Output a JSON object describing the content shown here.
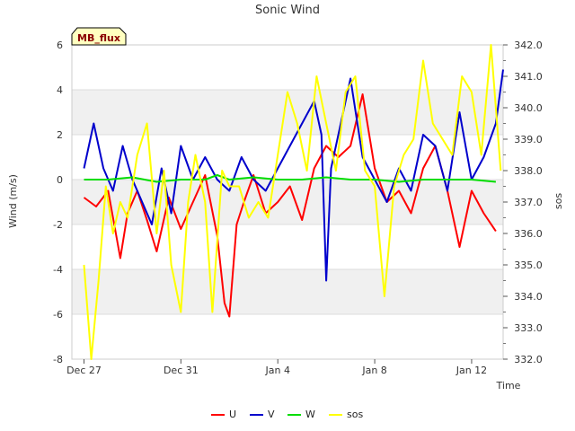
{
  "chart_data": {
    "type": "line",
    "title": "Sonic Wind",
    "badge": "MB_flux",
    "xlabel": "Time",
    "ylabel": "Wind (m/s)",
    "y2label": "sos",
    "xlim": [
      -0.5,
      17.3
    ],
    "ylim": [
      -8,
      6
    ],
    "y2lim": [
      332.0,
      342.0
    ],
    "x_ticks": [
      {
        "value": 0,
        "label": "Dec 27"
      },
      {
        "value": 4,
        "label": "Dec 31"
      },
      {
        "value": 8,
        "label": "Jan 4"
      },
      {
        "value": 12,
        "label": "Jan 8"
      },
      {
        "value": 16,
        "label": "Jan 12"
      }
    ],
    "y_ticks": [
      -8,
      -6,
      -4,
      -2,
      0,
      2,
      4,
      6
    ],
    "y2_ticks": [
      "332.0",
      "333.0",
      "334.0",
      "335.0",
      "336.0",
      "337.0",
      "338.0",
      "339.0",
      "340.0",
      "341.0",
      "342.0"
    ],
    "grid": true,
    "legend_position": "bottom",
    "series": [
      {
        "name": "U",
        "axis": "left",
        "color": "#ff0000",
        "x": [
          0,
          0.5,
          1,
          1.5,
          1.8,
          2.2,
          2.6,
          3,
          3.5,
          4,
          4.5,
          5,
          5.5,
          5.8,
          6,
          6.3,
          6.6,
          7,
          7.5,
          8,
          8.5,
          9,
          9.5,
          10,
          10.5,
          11,
          11.5,
          12,
          12.5,
          13,
          13.5,
          14,
          14.5,
          15,
          15.5,
          16,
          16.5,
          17
        ],
        "values": [
          -0.8,
          -1.2,
          -0.5,
          -3.5,
          -1.5,
          -0.5,
          -1.8,
          -3.2,
          -0.8,
          -2.2,
          -1,
          0.2,
          -2.5,
          -5.5,
          -6.1,
          -2,
          -1,
          0.2,
          -1.5,
          -1,
          -0.3,
          -1.8,
          0.5,
          1.5,
          1,
          1.5,
          3.8,
          0.5,
          -1,
          -0.5,
          -1.5,
          0.5,
          1.5,
          -0.5,
          -3,
          -0.5,
          -1.5,
          -2.3
        ]
      },
      {
        "name": "V",
        "axis": "left",
        "color": "#0000cc",
        "x": [
          0,
          0.4,
          0.8,
          1.2,
          1.6,
          2,
          2.4,
          2.8,
          3.2,
          3.6,
          4,
          4.5,
          5,
          5.5,
          6,
          6.5,
          7,
          7.5,
          8,
          8.5,
          9,
          9.5,
          9.8,
          10,
          10.2,
          10.5,
          11,
          11.5,
          12,
          12.5,
          13,
          13.5,
          14,
          14.5,
          15,
          15.5,
          16,
          16.5,
          17,
          17.3
        ],
        "values": [
          0.5,
          2.5,
          0.5,
          -0.5,
          1.5,
          0,
          -1,
          -2,
          0.5,
          -1.5,
          1.5,
          0,
          1,
          0,
          -0.5,
          1,
          0,
          -0.5,
          0.5,
          1.5,
          2.5,
          3.5,
          2,
          -4.5,
          0.5,
          2,
          4.5,
          1,
          0,
          -1,
          0.5,
          -0.5,
          2,
          1.5,
          -0.5,
          3,
          0,
          1,
          2.5,
          4.9
        ]
      },
      {
        "name": "W",
        "axis": "left",
        "color": "#00dd00",
        "x": [
          0,
          1,
          2,
          3,
          4,
          5,
          5.5,
          6,
          7,
          8,
          9,
          10,
          11,
          12,
          13,
          14,
          15,
          16,
          17
        ],
        "values": [
          0,
          0,
          0.1,
          -0.1,
          0,
          0,
          0.2,
          0,
          0.1,
          0,
          0,
          0.1,
          0,
          0,
          -0.1,
          0,
          0,
          0,
          -0.1
        ]
      },
      {
        "name": "sos",
        "axis": "right",
        "color": "#ffff00",
        "x": [
          0,
          0.3,
          0.6,
          0.9,
          1.2,
          1.5,
          1.8,
          2.2,
          2.6,
          3,
          3.3,
          3.6,
          4,
          4.3,
          4.6,
          5,
          5.3,
          5.7,
          6,
          6.4,
          6.8,
          7.2,
          7.6,
          8,
          8.4,
          8.8,
          9.2,
          9.6,
          10,
          10.4,
          10.8,
          11.2,
          11.6,
          12,
          12.4,
          12.8,
          13.2,
          13.6,
          14,
          14.4,
          14.8,
          15.2,
          15.6,
          16,
          16.4,
          16.8,
          17.2
        ],
        "values": [
          335.0,
          332.0,
          334.5,
          337.5,
          336.0,
          337.0,
          336.5,
          338.5,
          339.5,
          336.0,
          338.0,
          335.0,
          333.5,
          337.0,
          338.5,
          337.0,
          333.5,
          338.0,
          337.5,
          337.5,
          336.5,
          337.0,
          336.5,
          338.5,
          340.5,
          339.5,
          338.0,
          341.0,
          339.5,
          338.0,
          340.5,
          341.0,
          338.0,
          337.5,
          334.0,
          337.5,
          338.5,
          339.0,
          341.5,
          339.5,
          339.0,
          338.5,
          341.0,
          340.5,
          338.5,
          342.0,
          338.0
        ]
      }
    ]
  }
}
